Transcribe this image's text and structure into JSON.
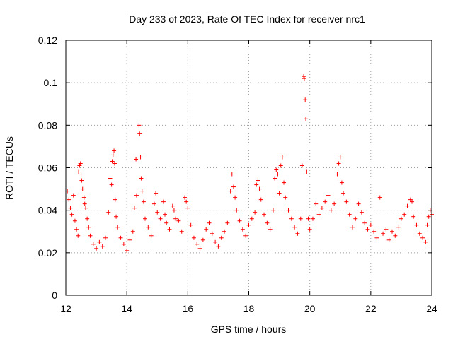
{
  "chart_data": {
    "type": "scatter",
    "title": "Day 233 of 2023, Rate Of TEC Index for receiver nrc1",
    "xlabel": "GPS time / hours",
    "ylabel": "ROTI / TECUs",
    "xlim": [
      12,
      24
    ],
    "ylim": [
      0,
      0.12
    ],
    "x_ticks": [
      12,
      14,
      16,
      18,
      20,
      22,
      24
    ],
    "x_tick_labels": [
      "12",
      "14",
      "16",
      "18",
      "20",
      "22",
      "24"
    ],
    "y_ticks": [
      0,
      0.02,
      0.04,
      0.06,
      0.08,
      0.1,
      0.12
    ],
    "y_tick_labels": [
      "0",
      "0.02",
      "0.04",
      "0.06",
      "0.08",
      "0.1",
      "0.12"
    ],
    "grid": true,
    "marker": "plus",
    "color": "#ff0000",
    "series": [
      {
        "name": "ROTI",
        "points": [
          [
            12.05,
            0.049
          ],
          [
            12.1,
            0.045
          ],
          [
            12.15,
            0.041
          ],
          [
            12.2,
            0.038
          ],
          [
            12.25,
            0.047
          ],
          [
            12.3,
            0.035
          ],
          [
            12.35,
            0.031
          ],
          [
            12.4,
            0.028
          ],
          [
            12.42,
            0.058
          ],
          [
            12.45,
            0.061
          ],
          [
            12.48,
            0.062
          ],
          [
            12.5,
            0.057
          ],
          [
            12.52,
            0.054
          ],
          [
            12.55,
            0.05
          ],
          [
            12.6,
            0.046
          ],
          [
            12.62,
            0.043
          ],
          [
            12.65,
            0.041
          ],
          [
            12.7,
            0.036
          ],
          [
            12.75,
            0.032
          ],
          [
            12.8,
            0.028
          ],
          [
            12.9,
            0.024
          ],
          [
            13.0,
            0.022
          ],
          [
            13.1,
            0.025
          ],
          [
            13.2,
            0.023
          ],
          [
            13.3,
            0.027
          ],
          [
            13.4,
            0.039
          ],
          [
            13.45,
            0.055
          ],
          [
            13.5,
            0.052
          ],
          [
            13.52,
            0.063
          ],
          [
            13.55,
            0.066
          ],
          [
            13.58,
            0.068
          ],
          [
            13.6,
            0.062
          ],
          [
            13.62,
            0.045
          ],
          [
            13.65,
            0.037
          ],
          [
            13.7,
            0.032
          ],
          [
            13.8,
            0.027
          ],
          [
            13.9,
            0.024
          ],
          [
            14.0,
            0.021
          ],
          [
            14.1,
            0.026
          ],
          [
            14.2,
            0.03
          ],
          [
            14.25,
            0.041
          ],
          [
            14.3,
            0.064
          ],
          [
            14.32,
            0.047
          ],
          [
            14.4,
            0.08
          ],
          [
            14.42,
            0.076
          ],
          [
            14.45,
            0.065
          ],
          [
            14.47,
            0.055
          ],
          [
            14.5,
            0.049
          ],
          [
            14.55,
            0.044
          ],
          [
            14.6,
            0.036
          ],
          [
            14.7,
            0.032
          ],
          [
            14.8,
            0.028
          ],
          [
            14.9,
            0.043
          ],
          [
            14.95,
            0.048
          ],
          [
            15.0,
            0.039
          ],
          [
            15.1,
            0.036
          ],
          [
            15.2,
            0.044
          ],
          [
            15.25,
            0.038
          ],
          [
            15.3,
            0.034
          ],
          [
            15.4,
            0.031
          ],
          [
            15.5,
            0.042
          ],
          [
            15.55,
            0.04
          ],
          [
            15.6,
            0.036
          ],
          [
            15.7,
            0.035
          ],
          [
            15.8,
            0.03
          ],
          [
            15.9,
            0.046
          ],
          [
            15.95,
            0.044
          ],
          [
            16.0,
            0.041
          ],
          [
            16.1,
            0.033
          ],
          [
            16.2,
            0.027
          ],
          [
            16.3,
            0.024
          ],
          [
            16.4,
            0.022
          ],
          [
            16.5,
            0.026
          ],
          [
            16.6,
            0.031
          ],
          [
            16.7,
            0.034
          ],
          [
            16.8,
            0.029
          ],
          [
            16.9,
            0.025
          ],
          [
            17.0,
            0.023
          ],
          [
            17.1,
            0.027
          ],
          [
            17.2,
            0.03
          ],
          [
            17.3,
            0.034
          ],
          [
            17.4,
            0.049
          ],
          [
            17.45,
            0.057
          ],
          [
            17.5,
            0.051
          ],
          [
            17.55,
            0.046
          ],
          [
            17.6,
            0.04
          ],
          [
            17.7,
            0.035
          ],
          [
            17.8,
            0.031
          ],
          [
            17.9,
            0.028
          ],
          [
            18.0,
            0.033
          ],
          [
            18.1,
            0.036
          ],
          [
            18.2,
            0.039
          ],
          [
            18.25,
            0.052
          ],
          [
            18.3,
            0.054
          ],
          [
            18.35,
            0.05
          ],
          [
            18.4,
            0.045
          ],
          [
            18.5,
            0.038
          ],
          [
            18.6,
            0.034
          ],
          [
            18.7,
            0.031
          ],
          [
            18.8,
            0.04
          ],
          [
            18.85,
            0.055
          ],
          [
            18.9,
            0.059
          ],
          [
            18.95,
            0.057
          ],
          [
            19.0,
            0.048
          ],
          [
            19.05,
            0.061
          ],
          [
            19.1,
            0.065
          ],
          [
            19.15,
            0.053
          ],
          [
            19.2,
            0.046
          ],
          [
            19.3,
            0.04
          ],
          [
            19.4,
            0.036
          ],
          [
            19.5,
            0.032
          ],
          [
            19.6,
            0.029
          ],
          [
            19.7,
            0.036
          ],
          [
            19.75,
            0.061
          ],
          [
            19.8,
            0.103
          ],
          [
            19.82,
            0.102
          ],
          [
            19.85,
            0.092
          ],
          [
            19.87,
            0.083
          ],
          [
            19.9,
            0.058
          ],
          [
            19.95,
            0.036
          ],
          [
            20.0,
            0.031
          ],
          [
            20.1,
            0.036
          ],
          [
            20.2,
            0.043
          ],
          [
            20.3,
            0.038
          ],
          [
            20.4,
            0.041
          ],
          [
            20.5,
            0.044
          ],
          [
            20.6,
            0.047
          ],
          [
            20.7,
            0.04
          ],
          [
            20.8,
            0.043
          ],
          [
            20.9,
            0.057
          ],
          [
            20.95,
            0.062
          ],
          [
            21.0,
            0.065
          ],
          [
            21.05,
            0.053
          ],
          [
            21.1,
            0.048
          ],
          [
            21.2,
            0.044
          ],
          [
            21.3,
            0.038
          ],
          [
            21.4,
            0.032
          ],
          [
            21.5,
            0.036
          ],
          [
            21.6,
            0.043
          ],
          [
            21.7,
            0.039
          ],
          [
            21.8,
            0.034
          ],
          [
            21.9,
            0.031
          ],
          [
            22.0,
            0.033
          ],
          [
            22.1,
            0.03
          ],
          [
            22.2,
            0.027
          ],
          [
            22.3,
            0.046
          ],
          [
            22.4,
            0.029
          ],
          [
            22.5,
            0.031
          ],
          [
            22.6,
            0.026
          ],
          [
            22.7,
            0.03
          ],
          [
            22.8,
            0.028
          ],
          [
            22.9,
            0.032
          ],
          [
            23.0,
            0.036
          ],
          [
            23.1,
            0.038
          ],
          [
            23.2,
            0.042
          ],
          [
            23.3,
            0.045
          ],
          [
            23.35,
            0.044
          ],
          [
            23.4,
            0.037
          ],
          [
            23.5,
            0.033
          ],
          [
            23.6,
            0.029
          ],
          [
            23.7,
            0.027
          ],
          [
            23.8,
            0.025
          ],
          [
            23.85,
            0.033
          ],
          [
            23.9,
            0.037
          ],
          [
            23.95,
            0.04
          ],
          [
            24.0,
            0.038
          ]
        ]
      }
    ]
  }
}
